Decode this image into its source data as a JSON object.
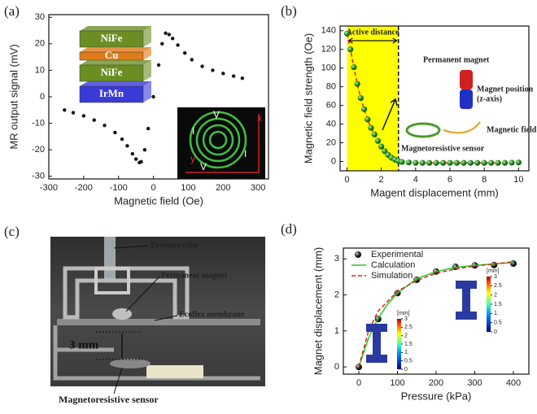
{
  "chart_data": [
    {
      "type": "scatter",
      "panel_label": "(a)",
      "x_label": "Magnetic field (Oe)",
      "y_label": "MR output signal (mV)",
      "x": [
        -255,
        -230,
        -200,
        -170,
        -140,
        -110,
        -90,
        -75,
        -60,
        -50,
        -40,
        -35,
        -25,
        -15,
        0,
        15,
        25,
        35,
        45,
        55,
        70,
        90,
        110,
        140,
        170,
        200,
        230,
        255
      ],
      "values": [
        -5,
        -6,
        -7.2,
        -8.8,
        -10.8,
        -13.5,
        -16,
        -18.5,
        -21.5,
        -23.5,
        -24.8,
        -24.5,
        -20,
        -12,
        0,
        12,
        20,
        24,
        23.5,
        22,
        19.5,
        16.5,
        14,
        11.5,
        10,
        8.8,
        7.8,
        7
      ],
      "color": "#111111",
      "xlim": [
        -300,
        330
      ],
      "ylim": [
        -31,
        31
      ],
      "xticks": [
        -300,
        -200,
        -100,
        0,
        100,
        200,
        300
      ],
      "yticks": [
        -30,
        -20,
        -10,
        0,
        10,
        20,
        30
      ],
      "inset_layers": [
        "NiFe",
        "Cu",
        "NiFe",
        "IrMn"
      ],
      "inset_chip_labels": [
        "I",
        "V",
        "V",
        "I",
        "x",
        "y"
      ]
    },
    {
      "type": "line",
      "panel_label": "(b)",
      "x_label": "Magent displacement (mm)",
      "y_label": "Magnetic field strength (Oe)",
      "x": [
        0,
        0.2,
        0.4,
        0.6,
        0.8,
        1.0,
        1.2,
        1.4,
        1.6,
        1.8,
        2.0,
        2.2,
        2.4,
        2.6,
        2.8,
        3.0,
        3.2,
        3.6,
        4.0,
        4.4,
        4.8,
        5.2,
        5.6,
        6.0,
        6.4,
        6.8,
        7.2,
        7.6,
        8.0,
        8.4,
        8.8,
        9.2,
        9.6,
        10.0
      ],
      "values": [
        137,
        120,
        101,
        83,
        68,
        56,
        45,
        36,
        29,
        22,
        16,
        11,
        7,
        4,
        2,
        0.5,
        -0.5,
        -1,
        -1.5,
        -1.5,
        -1.5,
        -1.5,
        -1.5,
        -1.5,
        -1.5,
        -1.5,
        -1.5,
        -1.5,
        -1.5,
        -1.5,
        -1.5,
        -1.5,
        -1.3,
        -1
      ],
      "color": "#2e9a2e",
      "line_color": "#e02020",
      "active_range": [
        0,
        3
      ],
      "active_label": "Active distance",
      "xlim": [
        -0.4,
        10.6
      ],
      "ylim": [
        -10,
        145
      ],
      "xticks": [
        0,
        2,
        4,
        6,
        8,
        10
      ],
      "yticks": [
        0,
        20,
        40,
        60,
        80,
        100,
        120,
        140
      ],
      "annotations": [
        "Permanent magnet",
        "Magnet position",
        "(z-axis)",
        "Magnetic field",
        "Magnetoresistive sensor"
      ]
    },
    {
      "type": "line",
      "panel_label": "(d)",
      "x_label": "Pressure (kPa)",
      "y_label": "Magnet displacement (mm)",
      "legend": "upper left",
      "series": [
        {
          "name": "Experimental",
          "color": "#111111",
          "marker": true,
          "line_style": null,
          "x": [
            0,
            50,
            100,
            150,
            200,
            250,
            300,
            350,
            400
          ],
          "values": [
            0,
            1.33,
            2.05,
            2.42,
            2.65,
            2.78,
            2.82,
            2.83,
            2.87
          ]
        },
        {
          "name": "Calculation",
          "color": "#22cc22",
          "marker": false,
          "line_style": "solid",
          "x": [
            0,
            25,
            50,
            75,
            100,
            150,
            200,
            250,
            300,
            350,
            400
          ],
          "values": [
            0,
            0.8,
            1.35,
            1.75,
            2.05,
            2.45,
            2.65,
            2.76,
            2.82,
            2.86,
            2.9
          ]
        },
        {
          "name": "Simulation",
          "color": "#e02020",
          "marker": false,
          "line_style": "dashed",
          "x": [
            0,
            25,
            50,
            100,
            150,
            200,
            250,
            300,
            350,
            400
          ],
          "values": [
            0,
            1.0,
            1.55,
            2.1,
            2.4,
            2.6,
            2.72,
            2.8,
            2.86,
            2.92
          ]
        }
      ],
      "xlim": [
        -40,
        440
      ],
      "ylim": [
        -0.2,
        3.3
      ],
      "xticks": [
        0,
        100,
        200,
        300,
        400
      ],
      "yticks": [
        0,
        1,
        2,
        3
      ],
      "colorbar_unit": "[mm]",
      "colorbar_ticks": [
        3,
        2.5,
        2,
        1.5,
        {
          "value": 1,
          "label": "1."
        },
        0.5,
        0
      ]
    }
  ],
  "panel_c": {
    "label": "(c)",
    "labels": [
      "Pressure tube",
      "Permanent magnet",
      "Ecoflex membrane",
      "3 mm",
      "Magnetoresistive sensor"
    ]
  }
}
